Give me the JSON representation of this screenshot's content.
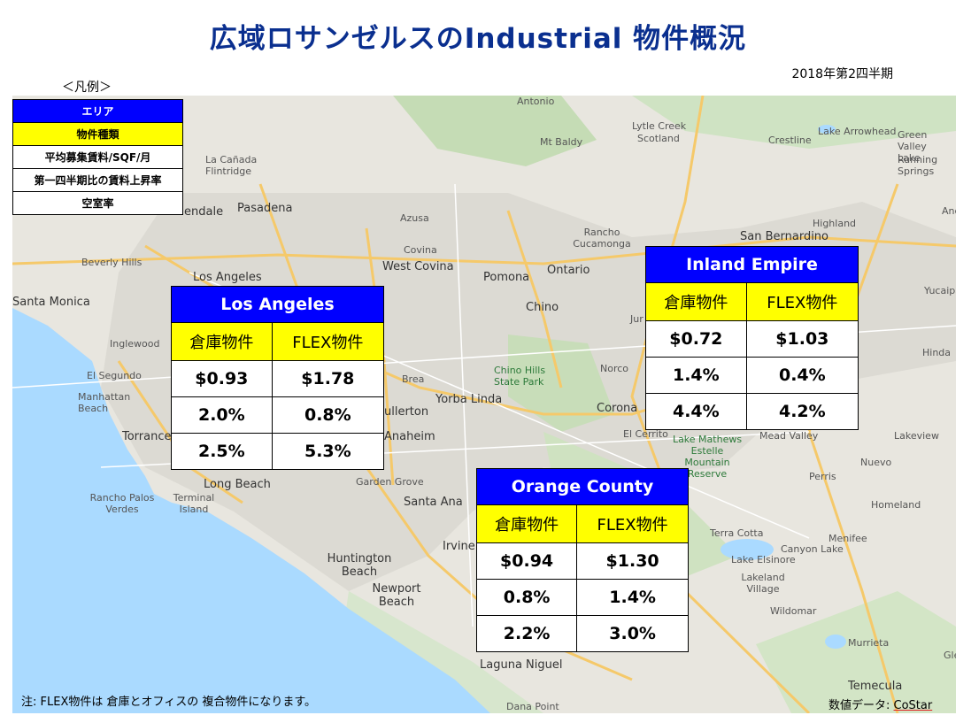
{
  "title": "広域ロサンゼルスのIndustrial 物件概況",
  "period": "2018年第2四半期",
  "legend": {
    "heading": "＜凡例＞",
    "rows": [
      "エリア",
      "物件種類",
      "平均募集賃料/SQF/月",
      "第一四半期比の賃料上昇率",
      "空室率"
    ]
  },
  "map_places": [
    "Antonio",
    "Lytle Creek",
    "Scotland",
    "Mt Baldy",
    "Crestline",
    "Lake Arrowhead",
    "Green Valley Lake",
    "Running Springs",
    "La Cañada Flintridge",
    "endale",
    "Pasadena",
    "Azusa",
    "Rancho Cucamonga",
    "San Bernardino",
    "Highland",
    "Beverly Hills",
    "West Covina",
    "Covina",
    "Ontario",
    "Los Angeles",
    "Santa Monica",
    "Pomona",
    "Chino",
    "Yucaipa",
    "Inglewood",
    "Hinda",
    "El Segundo",
    "Norco",
    "Manhattan Beach",
    "Brea",
    "Chino Hills State Park",
    "Yorba Linda",
    "ullerton",
    "Corona",
    "Torrance",
    "Anaheim",
    "El Cerrito",
    "Lake Mathews Estelle Mountain Reserve",
    "Mead Valley",
    "Lakeview",
    "Long Beach",
    "Garden Grove",
    "Rancho Palos Verdes",
    "Terminal Island",
    "Nuevo",
    "Santa Ana",
    "Perris",
    "Homeland",
    "Irvine",
    "Terra Cotta",
    "Menifee",
    "Huntington Beach",
    "Lake Elsinore",
    "Canyon Lake",
    "Lakeland Village",
    "Newport Beach",
    "Wildomar",
    "Murrieta",
    "Laguna Niguel",
    "Temecula",
    "Dana Point",
    "Glen",
    "Jur",
    "Ande"
  ],
  "regions": {
    "la": {
      "name": "Los Angeles",
      "types": [
        "倉庫物件",
        "FLEX物件"
      ],
      "rent": [
        "$0.93",
        "$1.78"
      ],
      "growth": [
        "2.0%",
        "0.8%"
      ],
      "vacancy": [
        "2.5%",
        "5.3%"
      ]
    },
    "ie": {
      "name": "Inland Empire",
      "types": [
        "倉庫物件",
        "FLEX物件"
      ],
      "rent": [
        "$0.72",
        "$1.03"
      ],
      "growth": [
        "1.4%",
        "0.4%"
      ],
      "vacancy": [
        "4.4%",
        "4.2%"
      ]
    },
    "oc": {
      "name": "Orange County",
      "types": [
        "倉庫物件",
        "FLEX物件"
      ],
      "rent": [
        "$0.94",
        "$1.30"
      ],
      "growth": [
        "0.8%",
        "1.4%"
      ],
      "vacancy": [
        "2.2%",
        "3.0%"
      ]
    }
  },
  "footnote": "注: FLEX物件は 倉庫とオフィスの 複合物件になります。",
  "source": {
    "label": "数値データ: ",
    "name": "CoStar"
  },
  "colors": {
    "title": "#0a2f8f",
    "region_header": "#0000ff",
    "type_row": "#ffff00",
    "ocean": "#aadaff"
  }
}
